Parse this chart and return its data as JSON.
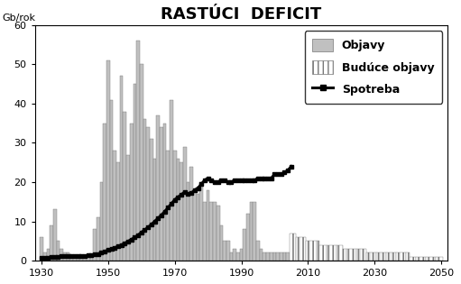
{
  "title": "RASTÚCI  DEFICIT",
  "ylabel": "Gb/rok",
  "xlim": [
    1928,
    2052
  ],
  "ylim": [
    0,
    60
  ],
  "xticks": [
    1930,
    1950,
    1970,
    1990,
    2010,
    2030,
    2050
  ],
  "yticks": [
    0,
    10,
    20,
    30,
    40,
    50,
    60
  ],
  "background_color": "#ffffff",
  "bar_color_past": "#c0c0c0",
  "bar_color_future": "#ffffff",
  "discovery_years": [
    1930,
    1931,
    1932,
    1933,
    1934,
    1935,
    1936,
    1937,
    1938,
    1939,
    1940,
    1941,
    1942,
    1943,
    1944,
    1945,
    1946,
    1947,
    1948,
    1949,
    1950,
    1951,
    1952,
    1953,
    1954,
    1955,
    1956,
    1957,
    1958,
    1959,
    1960,
    1961,
    1962,
    1963,
    1964,
    1965,
    1966,
    1967,
    1968,
    1969,
    1970,
    1971,
    1972,
    1973,
    1974,
    1975,
    1976,
    1977,
    1978,
    1979,
    1980,
    1981,
    1982,
    1983,
    1984,
    1985,
    1986,
    1987,
    1988,
    1989,
    1990,
    1991,
    1992,
    1993,
    1994,
    1995,
    1996,
    1997,
    1998,
    1999,
    2000,
    2001,
    2002,
    2003,
    2004
  ],
  "discovery_values": [
    6,
    2,
    3,
    9,
    13,
    5,
    3,
    2,
    2,
    1,
    1,
    1,
    1,
    1,
    1,
    1,
    8,
    11,
    20,
    35,
    51,
    41,
    28,
    25,
    47,
    38,
    27,
    35,
    45,
    56,
    50,
    36,
    34,
    31,
    26,
    37,
    34,
    35,
    28,
    41,
    28,
    26,
    25,
    29,
    20,
    24,
    18,
    17,
    20,
    15,
    18,
    15,
    15,
    14,
    9,
    5,
    5,
    2,
    3,
    2,
    3,
    8,
    12,
    15,
    15,
    5,
    3,
    2,
    2,
    2,
    2,
    2,
    2,
    2,
    2
  ],
  "future_years": [
    2005,
    2006,
    2007,
    2008,
    2009,
    2010,
    2011,
    2012,
    2013,
    2014,
    2015,
    2016,
    2017,
    2018,
    2019,
    2020,
    2021,
    2022,
    2023,
    2024,
    2025,
    2026,
    2027,
    2028,
    2029,
    2030,
    2031,
    2032,
    2033,
    2034,
    2035,
    2036,
    2037,
    2038,
    2039,
    2040,
    2041,
    2042,
    2043,
    2044,
    2045,
    2046,
    2047,
    2048,
    2049,
    2050
  ],
  "future_values": [
    7,
    7,
    6,
    6,
    6,
    5,
    5,
    5,
    5,
    4,
    4,
    4,
    4,
    4,
    4,
    4,
    3,
    3,
    3,
    3,
    3,
    3,
    3,
    2,
    2,
    2,
    2,
    2,
    2,
    2,
    2,
    2,
    2,
    2,
    2,
    2,
    1,
    1,
    1,
    1,
    1,
    1,
    1,
    1,
    1,
    1
  ],
  "consumption_years": [
    1930,
    1931,
    1932,
    1933,
    1934,
    1935,
    1936,
    1937,
    1938,
    1939,
    1940,
    1941,
    1942,
    1943,
    1944,
    1945,
    1946,
    1947,
    1948,
    1949,
    1950,
    1951,
    1952,
    1953,
    1954,
    1955,
    1956,
    1957,
    1958,
    1959,
    1960,
    1961,
    1962,
    1963,
    1964,
    1965,
    1966,
    1967,
    1968,
    1969,
    1970,
    1971,
    1972,
    1973,
    1974,
    1975,
    1976,
    1977,
    1978,
    1979,
    1980,
    1981,
    1982,
    1983,
    1984,
    1985,
    1986,
    1987,
    1988,
    1989,
    1990,
    1991,
    1992,
    1993,
    1994,
    1995,
    1996,
    1997,
    1998,
    1999,
    2000,
    2001,
    2002,
    2003,
    2004,
    2005
  ],
  "consumption_values": [
    0.7,
    0.8,
    0.8,
    0.9,
    1.0,
    1.0,
    1.1,
    1.1,
    1.2,
    1.2,
    1.2,
    1.2,
    1.2,
    1.2,
    1.3,
    1.3,
    1.5,
    1.7,
    2.0,
    2.3,
    2.7,
    3.0,
    3.3,
    3.6,
    4.0,
    4.4,
    4.9,
    5.4,
    5.9,
    6.5,
    7.2,
    7.8,
    8.5,
    9.2,
    10.0,
    10.8,
    11.6,
    12.5,
    13.5,
    14.5,
    15.5,
    16.2,
    16.8,
    17.5,
    17.0,
    17.2,
    18.0,
    18.5,
    19.5,
    20.5,
    21.0,
    20.5,
    20.0,
    20.0,
    20.5,
    20.5,
    20.0,
    20.0,
    20.5,
    20.5,
    20.5,
    20.5,
    20.5,
    20.5,
    20.5,
    21.0,
    21.0,
    21.0,
    21.0,
    21.0,
    22.0,
    22.0,
    22.0,
    22.5,
    23.0,
    24.0
  ],
  "legend_entries": [
    "Objavy",
    "Budúce objavy",
    "Spotreba"
  ],
  "title_fontsize": 13,
  "axis_fontsize": 8,
  "legend_fontsize": 9
}
